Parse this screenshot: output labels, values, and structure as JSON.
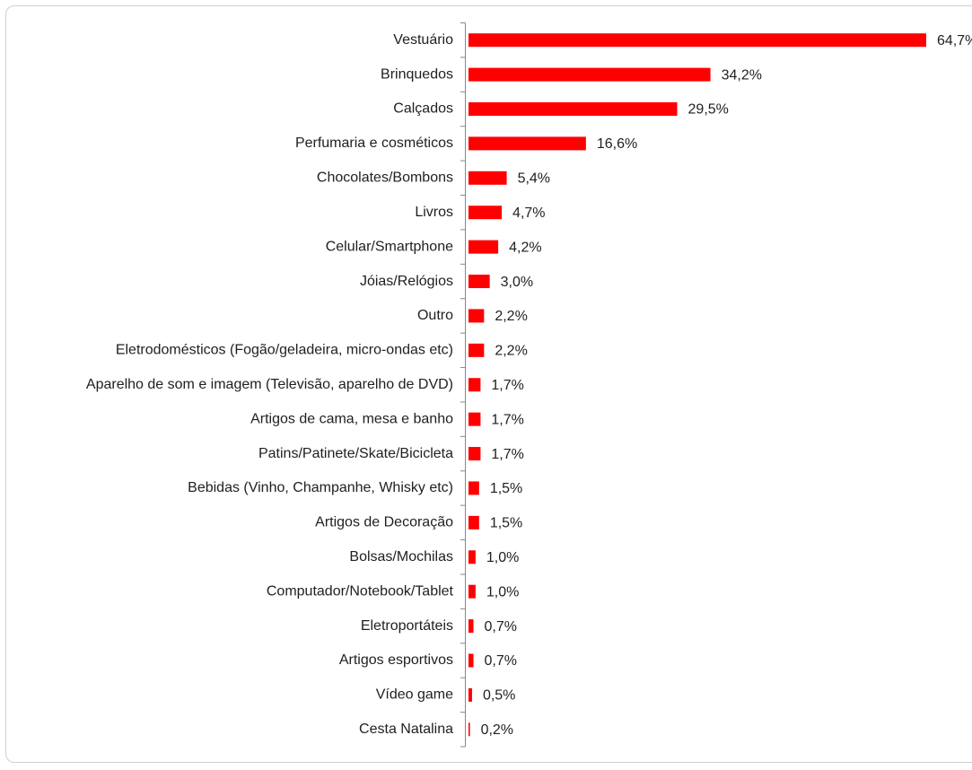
{
  "chart_data": {
    "type": "bar",
    "orientation": "horizontal",
    "categories": [
      "Vestuário",
      "Brinquedos",
      "Calçados",
      "Perfumaria e cosméticos",
      "Chocolates/Bombons",
      "Livros",
      "Celular/Smartphone",
      "Jóias/Relógios",
      "Outro",
      "Eletrodomésticos (Fogão/geladeira, micro-ondas etc)",
      "Aparelho de som e imagem (Televisão, aparelho de DVD)",
      "Artigos de cama, mesa e banho",
      "Patins/Patinete/Skate/Bicicleta",
      "Bebidas (Vinho, Champanhe, Whisky etc)",
      "Artigos de Decoração",
      "Bolsas/Mochilas",
      "Computador/Notebook/Tablet",
      "Eletroportáteis",
      "Artigos esportivos",
      "Vídeo game",
      "Cesta Natalina"
    ],
    "values": [
      64.7,
      34.2,
      29.5,
      16.6,
      5.4,
      4.7,
      4.2,
      3.0,
      2.2,
      2.2,
      1.7,
      1.7,
      1.7,
      1.5,
      1.5,
      1.0,
      1.0,
      0.7,
      0.7,
      0.5,
      0.2
    ],
    "value_labels": [
      "64,7%",
      "34,2%",
      "29,5%",
      "16,6%",
      "5,4%",
      "4,7%",
      "4,2%",
      "3,0%",
      "2,2%",
      "2,2%",
      "1,7%",
      "1,7%",
      "1,7%",
      "1,5%",
      "1,5%",
      "1,0%",
      "1,0%",
      "0,7%",
      "0,7%",
      "0,5%",
      "0,2%"
    ],
    "color": "#ff0000"
  }
}
